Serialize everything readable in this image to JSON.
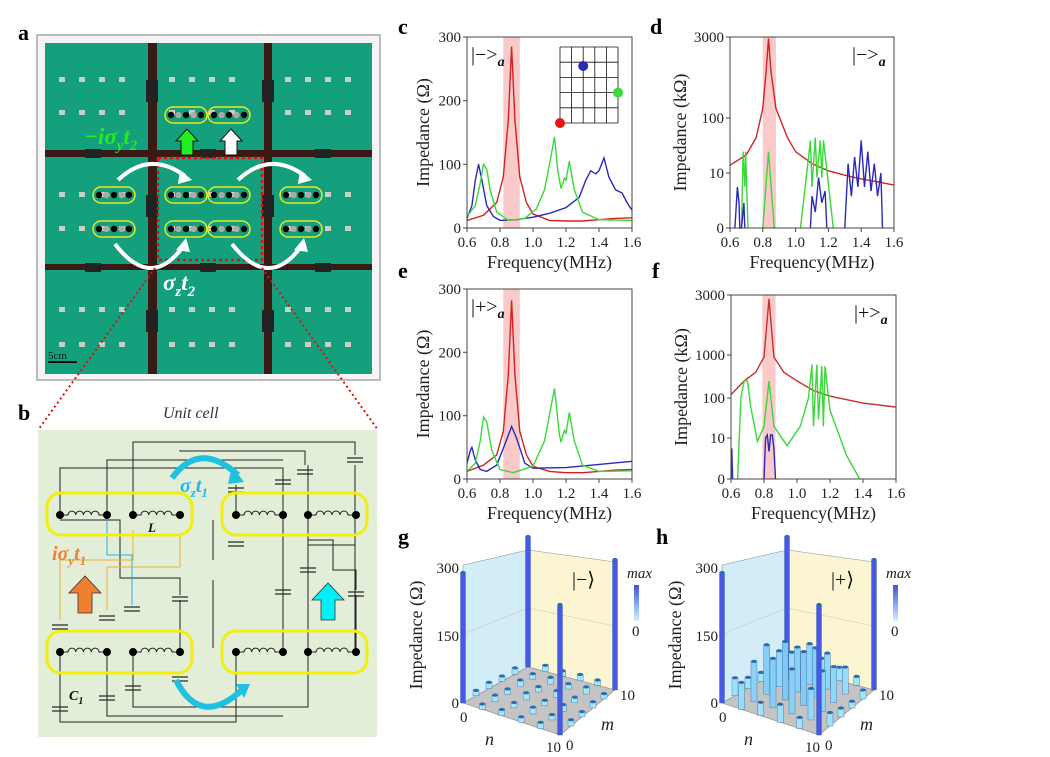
{
  "panel_labels": {
    "a": "a",
    "b": "b",
    "c": "c",
    "d": "d",
    "e": "e",
    "f": "f",
    "g": "g",
    "h": "h"
  },
  "panel_a": {
    "green_label": {
      "pre": "−iσ",
      "sub1": "y",
      "mid": "t",
      "sub2": "2"
    },
    "white_label": {
      "pre": "σ",
      "sub1": "z",
      "mid": "t",
      "sub2": "2"
    },
    "scale_bar": "5cm",
    "colors": {
      "board": "#14a07c",
      "strip": "#3a1a14",
      "green_text": "#22ee22",
      "frame_dotted": "#e01010"
    }
  },
  "panel_b": {
    "title": "Unit cell",
    "cyan_label": {
      "pre": "σ",
      "sub1": "z",
      "mid": "t",
      "sub2": "1"
    },
    "orange_label": {
      "pre": "iσ",
      "sub1": "y",
      "mid": "t",
      "sub2": "1"
    },
    "inductor_label": "L",
    "capacitor_label": {
      "pre": "C",
      "sub": "1"
    },
    "colors": {
      "background": "#e2eed8",
      "site_outline": "#f2ee10",
      "cyan": "#20c0e8",
      "orange": "#f08030"
    }
  },
  "chart_data": [
    {
      "id": "c",
      "type": "line",
      "xlabel": "Frequency(MHz)",
      "ylabel": "Impedance (Ω)",
      "state_label": {
        "main": "|−>",
        "sub": "a"
      },
      "xlim": [
        0.6,
        1.6
      ],
      "xticks": [
        "0.6",
        "0.8",
        "1.0",
        "1.2",
        "1.4",
        "1.6"
      ],
      "ylim": [
        0,
        300
      ],
      "yticks": [
        "0",
        "100",
        "200",
        "300"
      ],
      "yscale": "linear",
      "highlight_band": [
        0.82,
        0.92
      ],
      "inset": {
        "grid": "5x5",
        "dots": [
          {
            "color": "#2a2ab8",
            "row": 0.75,
            "col": 0.4
          },
          {
            "color": "#3ad83a",
            "row": 0.4,
            "col": 1.0
          },
          {
            "color": "#e01818",
            "row": 0.0,
            "col": 0.0
          }
        ]
      },
      "series": [
        {
          "color": "#d62020",
          "x": [
            0.6,
            0.7,
            0.78,
            0.82,
            0.85,
            0.87,
            0.89,
            0.92,
            0.96,
            1.0,
            1.1,
            1.2,
            1.3,
            1.4,
            1.5,
            1.6
          ],
          "y": [
            12,
            20,
            40,
            80,
            170,
            285,
            170,
            80,
            40,
            22,
            12,
            11,
            11,
            13,
            15,
            16
          ]
        },
        {
          "color": "#2a2ab8",
          "x": [
            0.6,
            0.63,
            0.65,
            0.67,
            0.69,
            0.72,
            0.76,
            0.8,
            0.9,
            1.0,
            1.1,
            1.2,
            1.28,
            1.32,
            1.35,
            1.38,
            1.4,
            1.43,
            1.46,
            1.5,
            1.54,
            1.57,
            1.6
          ],
          "y": [
            15,
            35,
            75,
            100,
            75,
            35,
            18,
            12,
            13,
            17,
            23,
            32,
            48,
            75,
            90,
            85,
            90,
            110,
            80,
            60,
            55,
            40,
            28
          ]
        },
        {
          "color": "#3ad83a",
          "x": [
            0.6,
            0.65,
            0.68,
            0.7,
            0.72,
            0.74,
            0.78,
            0.85,
            0.95,
            1.02,
            1.07,
            1.1,
            1.13,
            1.15,
            1.17,
            1.19,
            1.2,
            1.22,
            1.25,
            1.3,
            1.4,
            1.6
          ],
          "y": [
            18,
            35,
            70,
            100,
            92,
            60,
            25,
            12,
            15,
            30,
            60,
            100,
            143,
            90,
            62,
            78,
            75,
            105,
            60,
            25,
            13,
            12
          ]
        }
      ]
    },
    {
      "id": "d",
      "type": "line",
      "xlabel": "Frequency(MHz)",
      "ylabel": "Impedance (kΩ)",
      "state_label": {
        "main": "|−>",
        "sub": "a"
      },
      "xlim": [
        0.6,
        1.6
      ],
      "xticks": [
        "0.6",
        "0.8",
        "1.0",
        "1.2",
        "1.4",
        "1.6"
      ],
      "ylim": [
        0,
        3000
      ],
      "yticks": [
        "0",
        "10",
        "100",
        "3000"
      ],
      "yscale": "log",
      "highlight_band": [
        0.8,
        0.88
      ],
      "series": [
        {
          "color": "#d62020",
          "x": [
            0.6,
            0.7,
            0.76,
            0.8,
            0.82,
            0.835,
            0.85,
            0.88,
            0.95,
            1.0,
            1.1,
            1.2,
            1.3,
            1.4,
            1.5,
            1.6
          ],
          "y": [
            14,
            22,
            45,
            150,
            700,
            2800,
            700,
            150,
            45,
            25,
            15,
            11,
            9,
            7.5,
            6.5,
            5.5
          ]
        },
        {
          "color": "#3ad83a",
          "x": [
            0.67,
            0.68,
            0.69,
            0.695,
            0.71,
            null,
            0.8,
            0.835,
            0.87,
            null,
            1.03,
            1.09,
            1.1,
            1.12,
            1.13,
            1.15,
            1.16,
            1.17,
            1.23
          ],
          "y": [
            0,
            25,
            5,
            25,
            0,
            null,
            0,
            25,
            0,
            null,
            0,
            40,
            5,
            45,
            8,
            40,
            8,
            40,
            0
          ]
        },
        {
          "color": "#2a2ab8",
          "x": [
            0.63,
            0.645,
            0.655,
            0.66,
            0.67,
            0.685,
            0.69,
            null,
            1.09,
            1.1,
            1.12,
            1.14,
            1.16,
            1.18,
            1.19,
            null,
            1.3,
            1.32,
            1.34,
            1.36,
            1.38,
            1.4,
            1.42,
            1.44,
            1.46,
            1.48,
            1.5,
            1.52,
            1.53
          ],
          "y": [
            0,
            5,
            2,
            0,
            0,
            2,
            0,
            null,
            0,
            3,
            1,
            8,
            2,
            4,
            0,
            null,
            0,
            15,
            3,
            20,
            5,
            40,
            5,
            25,
            4,
            15,
            3,
            10,
            0
          ]
        }
      ]
    },
    {
      "id": "e",
      "type": "line",
      "xlabel": "Frequency(MHz)",
      "ylabel": "Impedance (Ω)",
      "state_label": {
        "main": "|+>",
        "sub": "a"
      },
      "xlim": [
        0.6,
        1.6
      ],
      "xticks": [
        "0.6",
        "0.8",
        "1.0",
        "1.2",
        "1.4",
        "1.6"
      ],
      "ylim": [
        0,
        300
      ],
      "yticks": [
        "0",
        "100",
        "200",
        "300"
      ],
      "yscale": "linear",
      "highlight_band": [
        0.82,
        0.92
      ],
      "series": [
        {
          "color": "#d62020",
          "x": [
            0.6,
            0.7,
            0.78,
            0.82,
            0.85,
            0.87,
            0.89,
            0.92,
            0.96,
            1.0,
            1.1,
            1.2,
            1.3,
            1.4,
            1.5,
            1.6
          ],
          "y": [
            12,
            22,
            38,
            75,
            165,
            282,
            165,
            75,
            38,
            20,
            12,
            10,
            10,
            12,
            14,
            15
          ]
        },
        {
          "color": "#2a2ab8",
          "x": [
            0.6,
            0.62,
            0.63,
            0.65,
            0.68,
            0.72,
            0.78,
            0.83,
            0.87,
            0.9,
            0.95,
            1.0,
            1.2,
            1.4,
            1.6
          ],
          "y": [
            25,
            45,
            50,
            30,
            15,
            12,
            22,
            55,
            83,
            65,
            25,
            17,
            18,
            23,
            28
          ]
        },
        {
          "color": "#3ad83a",
          "x": [
            0.6,
            0.65,
            0.68,
            0.7,
            0.72,
            0.75,
            0.8,
            0.88,
            1.0,
            1.07,
            1.13,
            1.16,
            1.17,
            1.19,
            1.2,
            1.22,
            1.25,
            1.3,
            1.4,
            1.6
          ],
          "y": [
            12,
            25,
            60,
            98,
            90,
            45,
            15,
            10,
            20,
            60,
            143,
            70,
            58,
            77,
            72,
            105,
            60,
            22,
            12,
            13
          ]
        }
      ]
    },
    {
      "id": "f",
      "type": "line",
      "xlabel": "Frequency(MHz)",
      "ylabel": "Impedance (kΩ)",
      "state_label": {
        "main": "|+>",
        "sub": "a"
      },
      "xlim": [
        0.6,
        1.6
      ],
      "xticks": [
        "0.6",
        "0.8",
        "1.0",
        "1.2",
        "1.4",
        "1.6"
      ],
      "ylim": [
        0,
        3000
      ],
      "yticks": [
        "0",
        "10",
        "100",
        "1000",
        "3000"
      ],
      "yscale": "log",
      "highlight_band": [
        0.79,
        0.87
      ],
      "series": [
        {
          "color": "#c83030",
          "x": [
            0.6,
            0.68,
            0.75,
            0.8,
            0.83,
            0.86,
            0.92,
            1.0,
            1.1,
            1.2,
            1.4,
            1.6
          ],
          "y": [
            120,
            250,
            400,
            900,
            2800,
            900,
            400,
            250,
            150,
            110,
            75,
            60
          ]
        },
        {
          "color": "#3ad83a",
          "x": [
            0.64,
            0.66,
            0.68,
            0.7,
            0.72,
            0.76,
            0.8,
            0.83,
            0.86,
            0.94,
            1.02,
            1.07,
            1.09,
            1.1,
            1.12,
            1.13,
            1.15,
            1.16,
            1.17,
            1.2,
            1.3,
            1.38
          ],
          "y": [
            0,
            100,
            250,
            250,
            60,
            8,
            20,
            250,
            20,
            6,
            20,
            100,
            600,
            20,
            600,
            30,
            550,
            20,
            550,
            50,
            3,
            0
          ]
        },
        {
          "color": "#2a2ab8",
          "x": [
            0.6,
            0.605,
            0.61,
            null,
            0.8,
            0.81,
            0.82,
            0.83,
            0.84,
            0.85,
            0.86,
            0.87
          ],
          "y": [
            0,
            5,
            0,
            null,
            0,
            10,
            12,
            4,
            12,
            12,
            5,
            0
          ]
        }
      ]
    },
    {
      "id": "g",
      "type": "bar3d",
      "zlabel": "Impedance (Ω)",
      "xlabel": "n",
      "ylabel": "m",
      "state_label": "|−⟩",
      "zticks": [
        "0",
        "150",
        "300"
      ],
      "zlim": [
        0,
        300
      ],
      "n_ticks": [
        "0",
        "10"
      ],
      "m_ticks": [
        "0",
        "10"
      ],
      "colorbar": {
        "max_label": "max",
        "min_label": "0"
      },
      "n": [
        0,
        2,
        4,
        6,
        8,
        10
      ],
      "m": [
        0,
        2,
        4,
        6,
        8,
        10
      ],
      "values": [
        [
          290,
          12,
          14,
          12,
          14,
          290
        ],
        [
          12,
          15,
          12,
          15,
          12,
          14
        ],
        [
          14,
          12,
          16,
          12,
          15,
          12
        ],
        [
          12,
          15,
          12,
          15,
          12,
          14
        ],
        [
          14,
          12,
          15,
          12,
          16,
          12
        ],
        [
          290,
          14,
          12,
          14,
          12,
          290
        ]
      ]
    },
    {
      "id": "h",
      "type": "bar3d",
      "zlabel": "Impedance (Ω)",
      "xlabel": "n",
      "ylabel": "m",
      "state_label": "|+⟩",
      "zticks": [
        "0",
        "150",
        "300"
      ],
      "zlim": [
        0,
        300
      ],
      "n_ticks": [
        "0",
        "10"
      ],
      "m_ticks": [
        "0",
        "10"
      ],
      "colorbar": {
        "max_label": "max",
        "min_label": "0"
      },
      "n": [
        0,
        2,
        4,
        6,
        8,
        10
      ],
      "m": [
        0,
        2,
        4,
        6,
        8,
        10
      ],
      "values": [
        [
          290,
          40,
          25,
          20,
          15,
          290
        ],
        [
          60,
          90,
          110,
          80,
          60,
          30
        ],
        [
          30,
          110,
          130,
          100,
          90,
          40
        ],
        [
          40,
          100,
          120,
          110,
          80,
          30
        ],
        [
          25,
          70,
          90,
          80,
          60,
          20
        ],
        [
          290,
          30,
          20,
          15,
          20,
          290
        ]
      ]
    }
  ]
}
